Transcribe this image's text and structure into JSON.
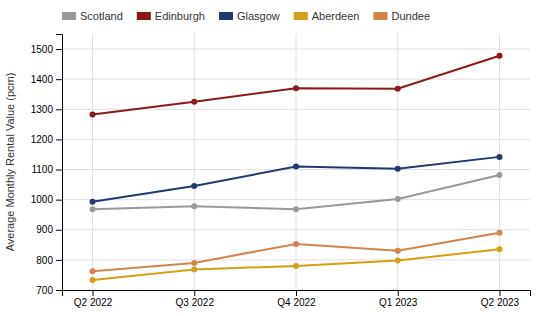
{
  "chart_data": {
    "type": "line",
    "categories": [
      "Q2 2022",
      "Q3 2022",
      "Q4 2022",
      "Q1 2023",
      "Q2 2023"
    ],
    "series": [
      {
        "name": "Scotland",
        "color": "#999999",
        "values": [
          968,
          978,
          968,
          1002,
          1082
        ]
      },
      {
        "name": "Edinburgh",
        "color": "#8B1A1A",
        "values": [
          1283,
          1325,
          1370,
          1368,
          1478
        ]
      },
      {
        "name": "Glasgow",
        "color": "#1F3B6E",
        "values": [
          993,
          1045,
          1110,
          1103,
          1142
        ]
      },
      {
        "name": "Aberdeen",
        "color": "#D4A017",
        "values": [
          733,
          768,
          780,
          798,
          835
        ]
      },
      {
        "name": "Dundee",
        "color": "#D2844A",
        "values": [
          762,
          790,
          853,
          830,
          890
        ]
      }
    ],
    "ylabel": "Average Monthly Rental Value (pcm)",
    "ylim": [
      700,
      1550
    ],
    "yticks": [
      700,
      800,
      900,
      1000,
      1100,
      1200,
      1300,
      1400,
      1500
    ],
    "grid": true,
    "legend": "top-left",
    "marker": "circle"
  }
}
